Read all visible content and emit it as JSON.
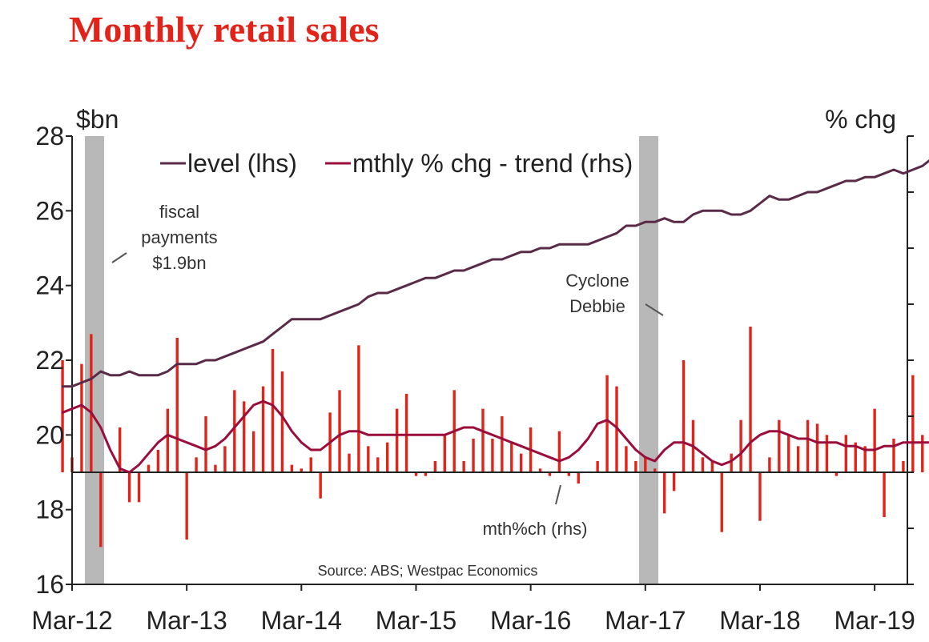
{
  "chart_data": {
    "type": "bar",
    "title": "Monthly retail sales",
    "left_axis_unit": "$bn",
    "right_axis_unit": "% chg",
    "left_ylim": [
      16,
      28
    ],
    "left_yticks": [
      "16",
      "18",
      "20",
      "22",
      "24",
      "26",
      "28"
    ],
    "x_ticks": [
      "Mar-12",
      "Mar-13",
      "Mar-14",
      "Mar-15",
      "Mar-16",
      "Mar-17",
      "Mar-18",
      "Mar-19"
    ],
    "legend": {
      "position": "top",
      "items": [
        {
          "label": "level (lhs)",
          "color": "#5a2b48"
        },
        {
          "label": "mthly % chg - trend (rhs)",
          "color": "#9b0d3a"
        }
      ]
    },
    "annotations": {
      "fiscal": [
        "fiscal",
        "payments",
        "$1.9bn"
      ],
      "cyclone": [
        "Cyclone",
        "Debbie"
      ],
      "mthch": "mth%ch (rhs)"
    },
    "source": "Source: ABS; Westpac Economics",
    "shaded_periods": [
      "Dec-11 to Apr-12",
      "Mar-17 to Apr-17"
    ],
    "x_start": "Feb-12",
    "x_end": "Mar-19",
    "series": [
      {
        "name": "level (lhs)",
        "axis": "left",
        "kind": "line",
        "color": "#5a2b48",
        "values": [
          21.3,
          21.3,
          21.4,
          21.5,
          21.7,
          21.6,
          21.6,
          21.7,
          21.6,
          21.6,
          21.6,
          21.7,
          21.9,
          21.9,
          21.9,
          22.0,
          22.0,
          22.1,
          22.2,
          22.3,
          22.4,
          22.5,
          22.7,
          22.9,
          23.1,
          23.1,
          23.1,
          23.1,
          23.2,
          23.3,
          23.4,
          23.5,
          23.7,
          23.8,
          23.8,
          23.9,
          24.0,
          24.1,
          24.2,
          24.2,
          24.3,
          24.4,
          24.4,
          24.5,
          24.6,
          24.7,
          24.7,
          24.8,
          24.9,
          24.9,
          25.0,
          25.0,
          25.1,
          25.1,
          25.1,
          25.1,
          25.2,
          25.3,
          25.4,
          25.6,
          25.6,
          25.7,
          25.7,
          25.8,
          25.7,
          25.7,
          25.9,
          26.0,
          26.0,
          26.0,
          25.9,
          25.9,
          26.0,
          26.2,
          26.4,
          26.3,
          26.3,
          26.4,
          26.5,
          26.5,
          26.6,
          26.7,
          26.8,
          26.8,
          26.9,
          26.9,
          27.0,
          27.1,
          27.0,
          27.1,
          27.2,
          27.4
        ]
      },
      {
        "name": "mthly % chg - trend (rhs)",
        "axis": "left-scaled",
        "kind": "line",
        "color": "#9b0d3a",
        "values": [
          20.6,
          20.7,
          20.8,
          20.6,
          20.2,
          19.6,
          19.1,
          19.0,
          19.2,
          19.5,
          19.8,
          20.0,
          19.9,
          19.8,
          19.7,
          19.6,
          19.7,
          19.9,
          20.2,
          20.5,
          20.8,
          20.9,
          20.8,
          20.5,
          20.1,
          19.8,
          19.6,
          19.6,
          19.8,
          20.0,
          20.1,
          20.1,
          20.0,
          20.0,
          20.0,
          20.0,
          20.0,
          20.0,
          20.0,
          20.0,
          20.0,
          20.1,
          20.2,
          20.2,
          20.1,
          20.0,
          19.9,
          19.8,
          19.7,
          19.6,
          19.5,
          19.4,
          19.3,
          19.4,
          19.6,
          19.9,
          20.3,
          20.4,
          20.2,
          19.9,
          19.6,
          19.4,
          19.3,
          19.6,
          19.8,
          19.8,
          19.7,
          19.5,
          19.3,
          19.2,
          19.3,
          19.5,
          19.8,
          20.0,
          20.1,
          20.1,
          20.0,
          19.9,
          19.9,
          19.8,
          19.8,
          19.8,
          19.7,
          19.7,
          19.6,
          19.6,
          19.7,
          19.7,
          19.8,
          19.8,
          19.8,
          19.8
        ]
      },
      {
        "name": "mth%ch (rhs)",
        "axis": "left-scaled",
        "kind": "bar",
        "color": "#e2231a",
        "values": [
          22.0,
          19.4,
          21.9,
          22.7,
          17.0,
          19.0,
          20.2,
          18.2,
          18.2,
          19.2,
          19.6,
          20.7,
          22.6,
          17.2,
          19.4,
          20.5,
          19.2,
          19.7,
          21.2,
          20.9,
          20.1,
          21.3,
          22.3,
          21.7,
          19.2,
          19.1,
          19.4,
          18.3,
          20.6,
          21.2,
          19.5,
          22.4,
          19.7,
          19.4,
          19.8,
          20.7,
          21.1,
          18.9,
          18.9,
          19.3,
          20.0,
          21.2,
          19.3,
          19.9,
          20.7,
          19.9,
          20.5,
          19.8,
          19.5,
          20.2,
          19.1,
          18.9,
          20.1,
          18.9,
          18.7,
          19.0,
          19.3,
          21.6,
          21.3,
          19.7,
          19.3,
          19.4,
          19.1,
          17.9,
          18.5,
          22.0,
          20.4,
          19.4,
          19.3,
          17.4,
          19.5,
          20.4,
          22.9,
          17.7,
          19.4,
          20.4,
          20.0,
          19.7,
          20.4,
          20.3,
          20.0,
          18.9,
          20.0,
          19.8,
          19.7,
          20.7,
          17.8,
          19.9,
          19.3,
          21.6,
          20.0,
          19.7
        ]
      }
    ]
  }
}
